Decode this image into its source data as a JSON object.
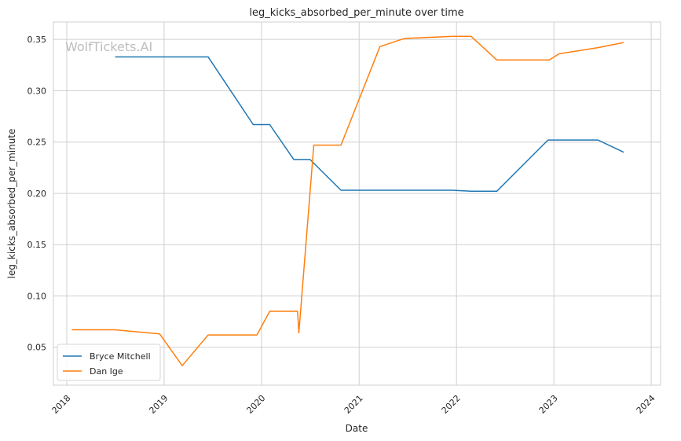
{
  "chart_data": {
    "type": "line",
    "title": "leg_kicks_absorbed_per_minute over time",
    "xlabel": "Date",
    "ylabel": "leg_kicks_absorbed_per_minute",
    "watermark": "WolfTickets.AI",
    "x_range": [
      "2017-11-12",
      "2024-02-05"
    ],
    "ylim": [
      0.013,
      0.367
    ],
    "x_ticks": [
      "2018",
      "2019",
      "2020",
      "2021",
      "2022",
      "2023",
      "2024"
    ],
    "y_ticks": [
      "0.05",
      "0.10",
      "0.15",
      "0.20",
      "0.25",
      "0.30",
      "0.35"
    ],
    "grid": true,
    "legend_position": "lower-left",
    "series": [
      {
        "name": "Bryce Mitchell",
        "color": "#1f77b4",
        "points": [
          [
            "2018-07-01",
            0.333
          ],
          [
            "2019-06-15",
            0.333
          ],
          [
            "2019-12-01",
            0.267
          ],
          [
            "2020-02-01",
            0.267
          ],
          [
            "2020-05-01",
            0.233
          ],
          [
            "2020-07-01",
            0.233
          ],
          [
            "2020-10-25",
            0.203
          ],
          [
            "2021-12-15",
            0.203
          ],
          [
            "2022-02-25",
            0.202
          ],
          [
            "2022-06-01",
            0.202
          ],
          [
            "2022-12-10",
            0.252
          ],
          [
            "2023-06-15",
            0.252
          ],
          [
            "2023-09-20",
            0.24
          ]
        ]
      },
      {
        "name": "Dan Ige",
        "color": "#ff7f0e",
        "points": [
          [
            "2018-01-20",
            0.067
          ],
          [
            "2018-06-30",
            0.067
          ],
          [
            "2018-12-15",
            0.063
          ],
          [
            "2019-03-10",
            0.032
          ],
          [
            "2019-06-15",
            0.062
          ],
          [
            "2019-12-15",
            0.062
          ],
          [
            "2020-02-01",
            0.085
          ],
          [
            "2020-05-15",
            0.085
          ],
          [
            "2020-05-20",
            0.064
          ],
          [
            "2020-07-15",
            0.247
          ],
          [
            "2020-10-25",
            0.247
          ],
          [
            "2021-03-20",
            0.343
          ],
          [
            "2021-06-20",
            0.351
          ],
          [
            "2021-12-20",
            0.353
          ],
          [
            "2022-02-25",
            0.353
          ],
          [
            "2022-06-01",
            0.33
          ],
          [
            "2022-12-15",
            0.33
          ],
          [
            "2023-01-20",
            0.336
          ],
          [
            "2023-06-15",
            0.342
          ],
          [
            "2023-09-20",
            0.347
          ]
        ]
      }
    ]
  }
}
